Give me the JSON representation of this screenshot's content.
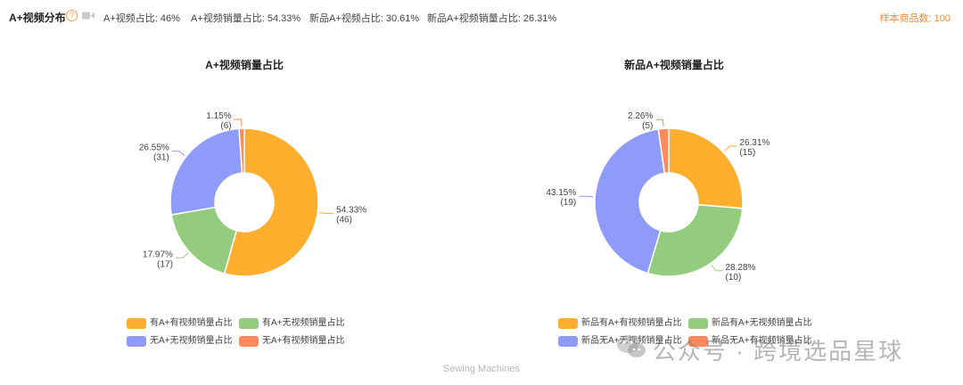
{
  "header": {
    "title": "A+视频分布",
    "stats": [
      "A+视频占比: 46%",
      "A+视频销量占比: 54.33%",
      "新品A+视频占比: 30.61%",
      "新品A+视频销量占比: 26.31%"
    ],
    "sample_count": "样本商品数: 100"
  },
  "chart_data": [
    {
      "type": "pie",
      "title": "A+视频销量占比",
      "slices": [
        {
          "label": "有A+有视频销量占比",
          "percent": 54.33,
          "count": 46,
          "color": "#FFAE2E",
          "pct_text": "54.33%",
          "count_text": "(46)"
        },
        {
          "label": "有A+无视频销量占比",
          "percent": 17.97,
          "count": 17,
          "color": "#93CC7E",
          "pct_text": "17.97%",
          "count_text": "(17)"
        },
        {
          "label": "无A+无视频销量占比",
          "percent": 26.55,
          "count": 31,
          "color": "#8F9BF9",
          "pct_text": "26.55%",
          "count_text": "(31)"
        },
        {
          "label": "无A+有视频销量占比",
          "percent": 1.15,
          "count": 6,
          "color": "#FF8A5C",
          "pct_text": "1.15%",
          "count_text": "(6)"
        }
      ]
    },
    {
      "type": "pie",
      "title": "新品A+视频销量占比",
      "slices": [
        {
          "label": "新品有A+有视频销量占比",
          "percent": 26.31,
          "count": 15,
          "color": "#FFAE2E",
          "pct_text": "26.31%",
          "count_text": "(15)"
        },
        {
          "label": "新品有A+无视频销量占比",
          "percent": 28.28,
          "count": 10,
          "color": "#93CC7E",
          "pct_text": "28.28%",
          "count_text": "(10)"
        },
        {
          "label": "新品无A+无视频销量占比",
          "percent": 43.15,
          "count": 19,
          "color": "#8F9BF9",
          "pct_text": "43.15%",
          "count_text": "(19)"
        },
        {
          "label": "新品无A+有视频销量占比",
          "percent": 2.26,
          "count": 5,
          "color": "#FF8A5C",
          "pct_text": "2.26%",
          "count_text": "(5)"
        }
      ]
    }
  ],
  "footer": "Sewing Machines",
  "watermark": "公众号 · 跨境选品星球"
}
